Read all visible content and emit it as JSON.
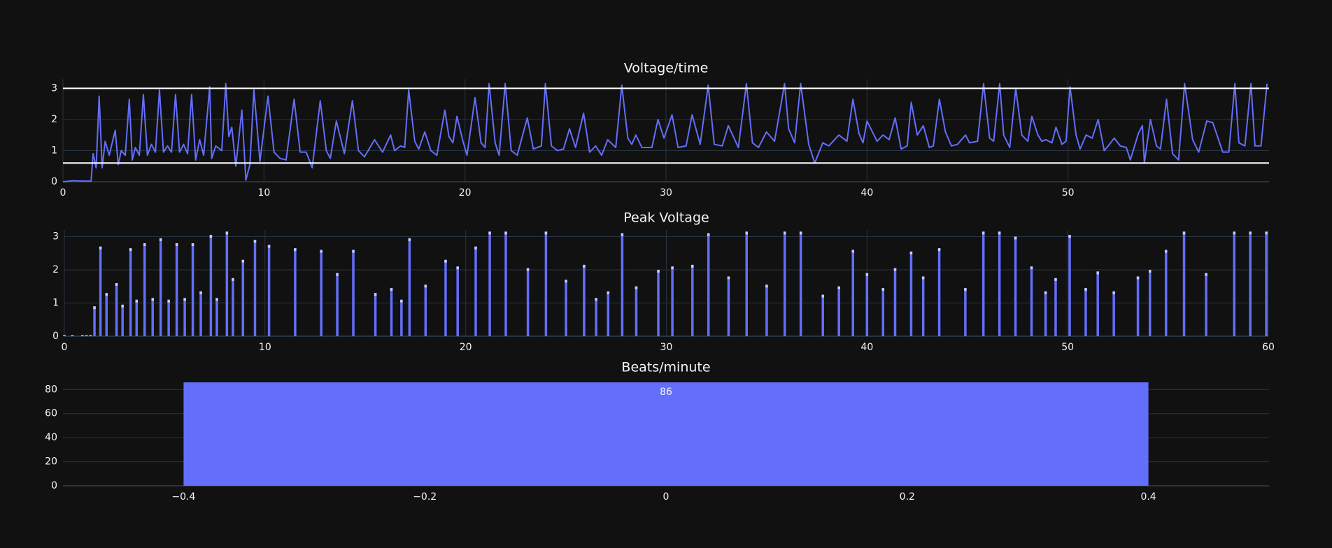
{
  "chart_data": [
    {
      "type": "line",
      "title": "Voltage/time",
      "color": "#636efa",
      "x": [
        0,
        0.5,
        1.0,
        1.4,
        1.5,
        1.65,
        1.8,
        1.95,
        2.1,
        2.3,
        2.6,
        2.75,
        2.9,
        3.1,
        3.3,
        3.45,
        3.6,
        3.8,
        4.0,
        4.2,
        4.4,
        4.6,
        4.8,
        5.0,
        5.2,
        5.4,
        5.6,
        5.8,
        6.0,
        6.2,
        6.4,
        6.6,
        6.8,
        7.0,
        7.3,
        7.4,
        7.6,
        7.9,
        8.1,
        8.25,
        8.4,
        8.6,
        8.9,
        9.1,
        9.3,
        9.5,
        9.8,
        10.2,
        10.5,
        10.8,
        11.1,
        11.5,
        11.8,
        12.1,
        12.4,
        12.8,
        13.1,
        13.3,
        13.6,
        14.0,
        14.4,
        14.7,
        15.0,
        15.5,
        15.9,
        16.3,
        16.5,
        16.8,
        17.0,
        17.2,
        17.5,
        17.7,
        18.0,
        18.3,
        18.6,
        19.0,
        19.2,
        19.4,
        19.6,
        19.9,
        20.1,
        20.5,
        20.8,
        21.0,
        21.2,
        21.5,
        21.7,
        22.0,
        22.3,
        22.6,
        23.1,
        23.4,
        23.8,
        24.0,
        24.3,
        24.6,
        24.9,
        25.2,
        25.5,
        25.9,
        26.2,
        26.5,
        26.8,
        27.1,
        27.5,
        27.8,
        28.1,
        28.3,
        28.5,
        28.8,
        29.3,
        29.6,
        29.9,
        30.3,
        30.6,
        31.0,
        31.3,
        31.7,
        32.1,
        32.4,
        32.8,
        33.1,
        33.6,
        34.0,
        34.3,
        34.6,
        35.0,
        35.4,
        35.9,
        36.1,
        36.4,
        36.7,
        37.1,
        37.4,
        37.8,
        38.1,
        38.6,
        39.0,
        39.3,
        39.6,
        39.8,
        40.0,
        40.5,
        40.8,
        41.1,
        41.4,
        41.7,
        42.0,
        42.2,
        42.5,
        42.8,
        43.1,
        43.3,
        43.6,
        43.9,
        44.2,
        44.5,
        44.9,
        45.1,
        45.5,
        45.8,
        46.1,
        46.3,
        46.6,
        46.8,
        47.1,
        47.4,
        47.7,
        48.0,
        48.2,
        48.5,
        48.7,
        48.9,
        49.2,
        49.4,
        49.7,
        49.9,
        50.1,
        50.4,
        50.6,
        50.9,
        51.2,
        51.5,
        51.8,
        52.0,
        52.3,
        52.6,
        52.9,
        53.1,
        53.5,
        53.7,
        53.8,
        54.1,
        54.4,
        54.6,
        54.9,
        55.2,
        55.5,
        55.8,
        56.2,
        56.5,
        56.9,
        57.2,
        57.7,
        58.0,
        58.3,
        58.5,
        58.8,
        59.1,
        59.3,
        59.6,
        59.9
      ],
      "values": [
        0,
        0.03,
        0.02,
        0.02,
        0.9,
        0.45,
        2.75,
        0.45,
        1.3,
        0.85,
        1.65,
        0.55,
        1.0,
        0.85,
        2.65,
        0.7,
        1.1,
        0.85,
        2.8,
        0.85,
        1.2,
        0.95,
        2.95,
        0.95,
        1.15,
        0.95,
        2.8,
        0.95,
        1.2,
        0.9,
        2.8,
        0.7,
        1.35,
        0.85,
        3.05,
        0.75,
        1.15,
        1.0,
        3.15,
        1.45,
        1.75,
        0.5,
        2.3,
        0.05,
        0.55,
        2.95,
        0.65,
        2.75,
        0.95,
        0.75,
        0.7,
        2.65,
        0.95,
        0.95,
        0.45,
        2.6,
        1.0,
        0.75,
        1.95,
        0.9,
        2.6,
        1.0,
        0.8,
        1.35,
        0.95,
        1.5,
        1.0,
        1.15,
        1.1,
        2.95,
        1.3,
        1.05,
        1.6,
        1.0,
        0.85,
        2.3,
        1.45,
        1.25,
        2.1,
        1.3,
        0.85,
        2.7,
        1.25,
        1.1,
        3.15,
        1.25,
        0.85,
        3.15,
        1.0,
        0.85,
        2.05,
        1.05,
        1.15,
        3.15,
        1.15,
        1.0,
        1.05,
        1.7,
        1.1,
        2.2,
        0.95,
        1.15,
        0.85,
        1.35,
        1.1,
        3.1,
        1.4,
        1.2,
        1.5,
        1.1,
        1.1,
        2.0,
        1.4,
        2.15,
        1.1,
        1.15,
        2.15,
        1.2,
        3.1,
        1.2,
        1.15,
        1.8,
        1.1,
        3.15,
        1.25,
        1.1,
        1.6,
        1.3,
        3.15,
        1.7,
        1.25,
        3.15,
        1.2,
        0.6,
        1.25,
        1.15,
        1.5,
        1.3,
        2.65,
        1.55,
        1.25,
        1.95,
        1.3,
        1.5,
        1.35,
        2.05,
        1.05,
        1.15,
        2.55,
        1.5,
        1.8,
        1.1,
        1.15,
        2.65,
        1.6,
        1.15,
        1.2,
        1.5,
        1.25,
        1.3,
        3.15,
        1.4,
        1.3,
        3.15,
        1.5,
        1.1,
        3.0,
        1.5,
        1.3,
        2.1,
        1.5,
        1.3,
        1.35,
        1.25,
        1.75,
        1.2,
        1.3,
        3.05,
        1.5,
        1.05,
        1.5,
        1.4,
        2.0,
        1.0,
        1.15,
        1.4,
        1.15,
        1.1,
        0.7,
        1.55,
        1.8,
        0.6,
        2.0,
        1.15,
        1.05,
        2.65,
        0.9,
        0.7,
        3.15,
        1.35,
        0.95,
        1.95,
        1.9,
        0.95,
        0.95,
        3.15,
        1.25,
        1.15,
        3.15,
        1.15,
        1.15,
        3.15
      ],
      "hlines": [
        3,
        0.6
      ],
      "xlim": [
        0,
        60
      ],
      "ylim": [
        0,
        3.3
      ],
      "xticks": [
        0,
        10,
        20,
        30,
        40,
        50
      ],
      "yticks": [
        0,
        1,
        2,
        3
      ],
      "grid": true,
      "xgrid": true
    },
    {
      "type": "bar",
      "title": "Peak Voltage",
      "color": "#636efa",
      "x": [
        0,
        0.4,
        0.9,
        1.1,
        1.3,
        1.5,
        1.8,
        2.1,
        2.6,
        2.9,
        3.3,
        3.6,
        4.0,
        4.4,
        4.8,
        5.2,
        5.6,
        6.0,
        6.4,
        6.8,
        7.3,
        7.6,
        8.1,
        8.4,
        8.9,
        9.5,
        10.2,
        11.5,
        12.8,
        13.6,
        14.4,
        15.5,
        16.3,
        16.8,
        17.2,
        18.0,
        19.0,
        19.6,
        20.5,
        21.2,
        22.0,
        23.1,
        24.0,
        25.0,
        25.9,
        26.5,
        27.1,
        27.8,
        28.5,
        29.6,
        30.3,
        31.3,
        32.1,
        33.1,
        34.0,
        35.0,
        35.9,
        36.7,
        37.8,
        38.6,
        39.3,
        40.0,
        40.8,
        41.4,
        42.2,
        42.8,
        43.6,
        44.9,
        45.8,
        46.6,
        47.4,
        48.2,
        48.9,
        49.4,
        50.1,
        50.9,
        51.5,
        52.3,
        53.5,
        54.1,
        54.9,
        55.8,
        56.9,
        58.3,
        59.1,
        59.9
      ],
      "values": [
        0.03,
        0.03,
        0.03,
        0.03,
        0.03,
        0.9,
        2.7,
        1.3,
        1.6,
        0.95,
        2.65,
        1.1,
        2.8,
        1.15,
        2.95,
        1.1,
        2.8,
        1.15,
        2.8,
        1.35,
        3.05,
        1.15,
        3.15,
        1.75,
        2.3,
        2.9,
        2.75,
        2.65,
        2.6,
        1.9,
        2.6,
        1.3,
        1.45,
        1.1,
        2.95,
        1.55,
        2.3,
        2.1,
        2.7,
        3.15,
        3.15,
        2.05,
        3.15,
        1.7,
        2.15,
        1.15,
        1.35,
        3.1,
        1.5,
        2.0,
        2.1,
        2.15,
        3.1,
        1.8,
        3.15,
        1.55,
        3.15,
        3.15,
        1.25,
        1.5,
        2.6,
        1.9,
        1.45,
        2.05,
        2.55,
        1.8,
        2.65,
        1.45,
        3.15,
        3.15,
        3.0,
        2.1,
        1.35,
        1.75,
        3.05,
        1.45,
        1.95,
        1.35,
        1.8,
        2.0,
        2.6,
        3.15,
        1.9,
        3.15,
        3.15,
        3.15
      ],
      "xlim": [
        0,
        60
      ],
      "ylim": [
        0,
        3.2
      ],
      "xticks": [
        0,
        10,
        20,
        30,
        40,
        50,
        60
      ],
      "yticks": [
        0,
        1,
        2,
        3
      ],
      "grid": true,
      "xgrid": true
    },
    {
      "type": "bar",
      "title": "Beats/minute",
      "color": "#636efa",
      "x": [
        0
      ],
      "values": [
        86
      ],
      "bar_width": 0.8,
      "show_values": true,
      "xlim": [
        -0.5,
        0.5
      ],
      "ylim": [
        0,
        86
      ],
      "xticks": [
        {
          "value": -0.4,
          "label": "−0.4"
        },
        {
          "value": -0.2,
          "label": "−0.2"
        },
        0,
        0.2,
        0.4
      ],
      "yticks": [
        0,
        20,
        40,
        60,
        80
      ],
      "grid": true,
      "xgrid": false
    }
  ]
}
